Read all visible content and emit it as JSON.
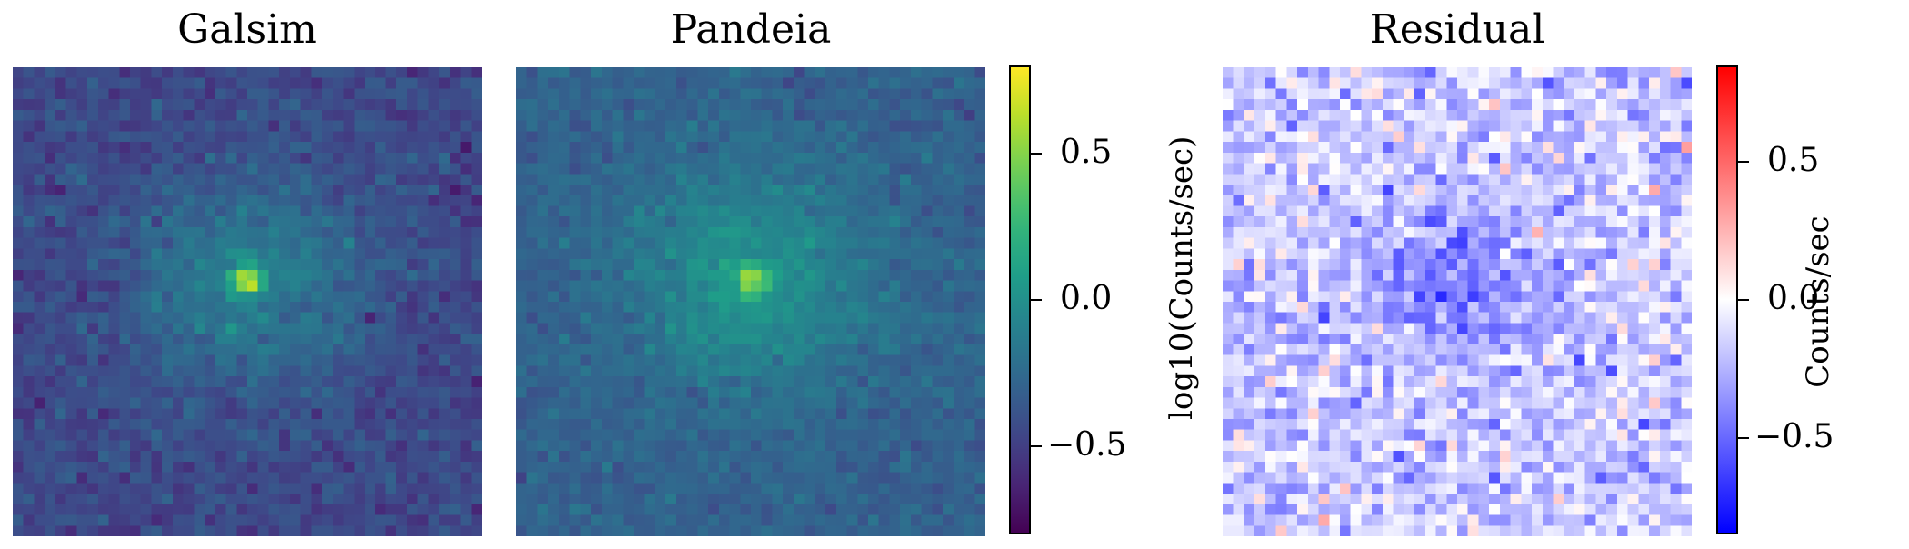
{
  "chart_data": [
    {
      "type": "heatmap",
      "title": "Galsim",
      "grid": [
        44,
        44
      ],
      "colormap": "viridis",
      "colorbar": "shared-viridis",
      "vrange": [
        -0.8,
        0.8
      ],
      "center_value": 0.65,
      "background_value": -0.45
    },
    {
      "type": "heatmap",
      "title": "Pandeia",
      "grid": [
        44,
        44
      ],
      "colormap": "viridis",
      "colorbar": "shared-viridis",
      "vrange": [
        -0.8,
        0.8
      ],
      "center_value": 0.68,
      "background_value": -0.3
    },
    {
      "type": "heatmap",
      "title": "Residual",
      "grid": [
        44,
        44
      ],
      "colormap": "bwr",
      "colorbar": "residual-bwr",
      "vrange": [
        -0.85,
        0.85
      ],
      "center_value": -0.55,
      "background_value": -0.18
    }
  ],
  "colorbars": {
    "viridis": {
      "label": "log10(Counts/sec)",
      "range": [
        -0.8,
        0.8
      ],
      "ticks": [
        {
          "value": 0.5,
          "label": "0.5"
        },
        {
          "value": 0.0,
          "label": "0.0"
        },
        {
          "value": -0.5,
          "label": "−0.5"
        }
      ]
    },
    "residual": {
      "label": "Counts/sec",
      "range": [
        -0.85,
        0.85
      ],
      "ticks": [
        {
          "value": 0.5,
          "label": "0.5"
        },
        {
          "value": 0.0,
          "label": "0.0"
        },
        {
          "value": -0.5,
          "label": "−0.5"
        }
      ]
    }
  }
}
